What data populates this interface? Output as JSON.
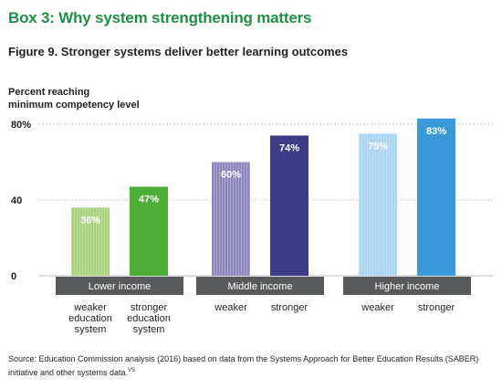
{
  "box_title": "Box 3: Why system strengthening matters",
  "figure_title": "Figure 9. Stronger systems deliver better learning outcomes",
  "y_title": [
    "Percent reaching",
    "minimum competency level"
  ],
  "source_text": "Source: Education Commission analysis (2016) based on data from the Systems Approach for Better Education Results (SABER) initiative and other systems data.",
  "source_sup": "VS",
  "colors": {
    "title_green": "#1f8f43",
    "group_bar": "#58595b",
    "low_weaker": "#a9d27e",
    "low_stronger": "#4cad37",
    "mid_weaker": "#8d86bd",
    "mid_stronger": "#3e3b87",
    "high_weaker": "#a9d4f2",
    "high_stronger": "#3a9ad9"
  },
  "chart_data": {
    "type": "bar",
    "ylabel": "Percent reaching minimum competency level",
    "ylim": [
      0,
      80
    ],
    "yticks": [
      {
        "value": 0,
        "label": "0"
      },
      {
        "value": 40,
        "label": "40"
      },
      {
        "value": 80,
        "label": "80%"
      }
    ],
    "groups": [
      {
        "name": "Lower income",
        "bars": [
          {
            "label": "weaker education system",
            "label_lines": [
              "weaker",
              "education",
              "system"
            ],
            "value": 36,
            "value_label": "36%",
            "color": "#a9d27e",
            "hatched": true
          },
          {
            "label": "stronger education system",
            "label_lines": [
              "stronger",
              "education",
              "system"
            ],
            "value": 47,
            "value_label": "47%",
            "color": "#4cad37",
            "hatched": false
          }
        ]
      },
      {
        "name": "Middle income",
        "bars": [
          {
            "label": "weaker",
            "label_lines": [
              "weaker"
            ],
            "value": 60,
            "value_label": "60%",
            "color": "#8d86bd",
            "hatched": true
          },
          {
            "label": "stronger",
            "label_lines": [
              "stronger"
            ],
            "value": 74,
            "value_label": "74%",
            "color": "#3e3b87",
            "hatched": false
          }
        ]
      },
      {
        "name": "Higher income",
        "bars": [
          {
            "label": "weaker",
            "label_lines": [
              "weaker"
            ],
            "value": 75,
            "value_label": "75%",
            "color": "#a9d4f2",
            "hatched": true
          },
          {
            "label": "stronger",
            "label_lines": [
              "stronger"
            ],
            "value": 83,
            "value_label": "83%",
            "color": "#3a9ad9",
            "hatched": false
          }
        ]
      }
    ]
  }
}
